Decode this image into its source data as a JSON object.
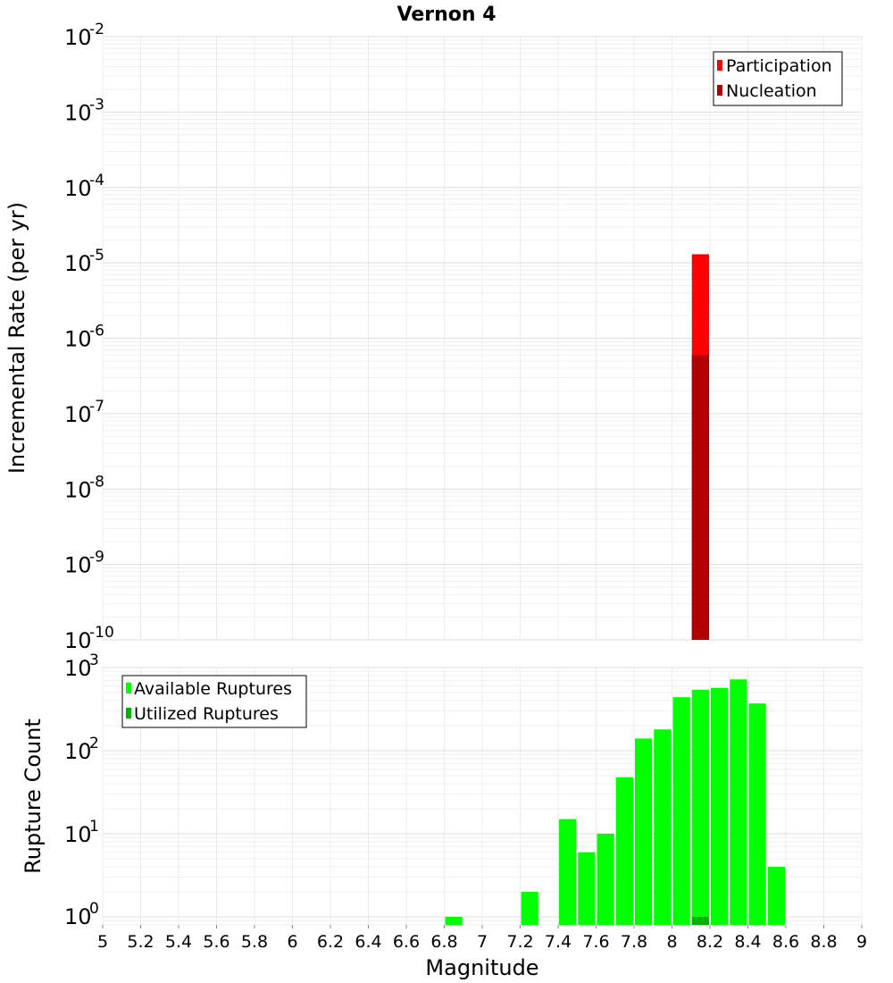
{
  "chart_data": [
    {
      "type": "bar",
      "title": "Vernon 4",
      "xlabel": "",
      "ylabel": "Incremental Rate (per yr)",
      "y_scale": "log",
      "ylim_exponents": [
        -10,
        -2
      ],
      "xlim": [
        5,
        9
      ],
      "y_tick_exponents": [
        -2,
        -3,
        -4,
        -5,
        -6,
        -7,
        -8,
        -9,
        -10
      ],
      "legend": {
        "placement": "top-right",
        "entries": [
          "Participation",
          "Nucleation"
        ]
      },
      "bar_width": 0.1,
      "series": [
        {
          "name": "Participation",
          "color": "#ff0000",
          "x": [
            8.15
          ],
          "values": [
            1.3e-05
          ]
        },
        {
          "name": "Nucleation",
          "color": "#b20000",
          "x": [
            8.15
          ],
          "values": [
            6e-07
          ]
        }
      ],
      "grid": true
    },
    {
      "type": "bar",
      "xlabel": "Magnitude",
      "ylabel": "Rupture Count",
      "y_scale": "log",
      "ylim": [
        0.8,
        1000
      ],
      "xlim": [
        5,
        9
      ],
      "y_tick_exponents": [
        3,
        2,
        1,
        0
      ],
      "x_ticks": [
        "5",
        "5.2",
        "5.4",
        "5.6",
        "5.8",
        "6",
        "6.2",
        "6.4",
        "6.6",
        "6.8",
        "7",
        "7.2",
        "7.4",
        "7.6",
        "7.8",
        "8",
        "8.2",
        "8.4",
        "8.6",
        "8.8",
        "9"
      ],
      "legend": {
        "placement": "top-left",
        "entries": [
          "Available Ruptures",
          "Utilized Ruptures"
        ]
      },
      "bar_width": 0.1,
      "series": [
        {
          "name": "Available Ruptures",
          "color": "#00ff00",
          "x": [
            6.85,
            7.25,
            7.45,
            7.55,
            7.65,
            7.75,
            7.85,
            7.95,
            8.05,
            8.15,
            8.25,
            8.35,
            8.45,
            8.55
          ],
          "values": [
            1,
            2,
            15,
            6,
            10,
            48,
            140,
            180,
            440,
            540,
            570,
            720,
            370,
            4
          ]
        },
        {
          "name": "Utilized Ruptures",
          "color": "#00b200",
          "x": [
            8.15
          ],
          "values": [
            1
          ]
        }
      ],
      "grid": true
    }
  ]
}
